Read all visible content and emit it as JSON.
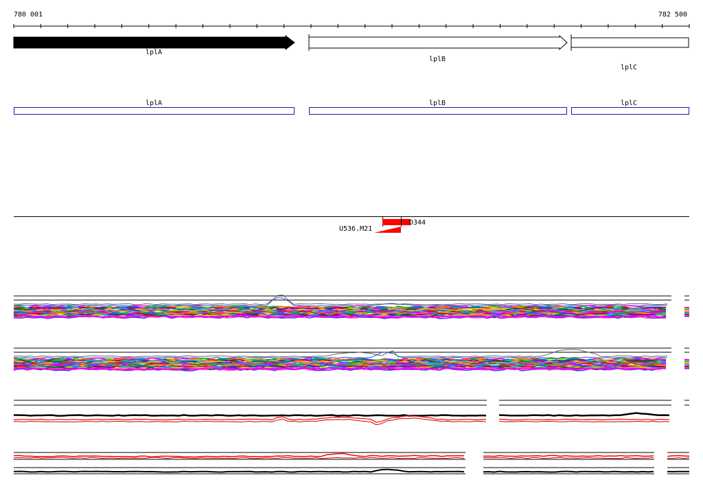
{
  "coords": {
    "start": "780 001",
    "end": "782 500"
  },
  "colors": {
    "gene_filled": "#000000",
    "gene_outline": "#000000",
    "cds_box": "#1a1aaa",
    "feature_red": "#ff0000",
    "background": "#ffffff"
  },
  "genes": [
    {
      "name": "lplA",
      "strand": "+",
      "filled": true
    },
    {
      "name": "lplB",
      "strand": "+",
      "filled": false
    },
    {
      "name": "lplC",
      "strand": "+",
      "filled": false
    }
  ],
  "cds": [
    {
      "name": "lplA"
    },
    {
      "name": "lplB"
    },
    {
      "name": "lplC"
    }
  ],
  "features": [
    {
      "name": "D344",
      "type": "block",
      "icon": "red-block"
    },
    {
      "name": "U536.M21",
      "type": "wedge",
      "icon": "red-wedge"
    }
  ],
  "tracks": [
    {
      "name": "multicolor-profile-1",
      "style": "multicolor"
    },
    {
      "name": "multicolor-profile-2",
      "style": "multicolor"
    },
    {
      "name": "black-red-profile-1",
      "style": "black-red"
    },
    {
      "name": "black-red-profile-2",
      "style": "black-red"
    }
  ]
}
